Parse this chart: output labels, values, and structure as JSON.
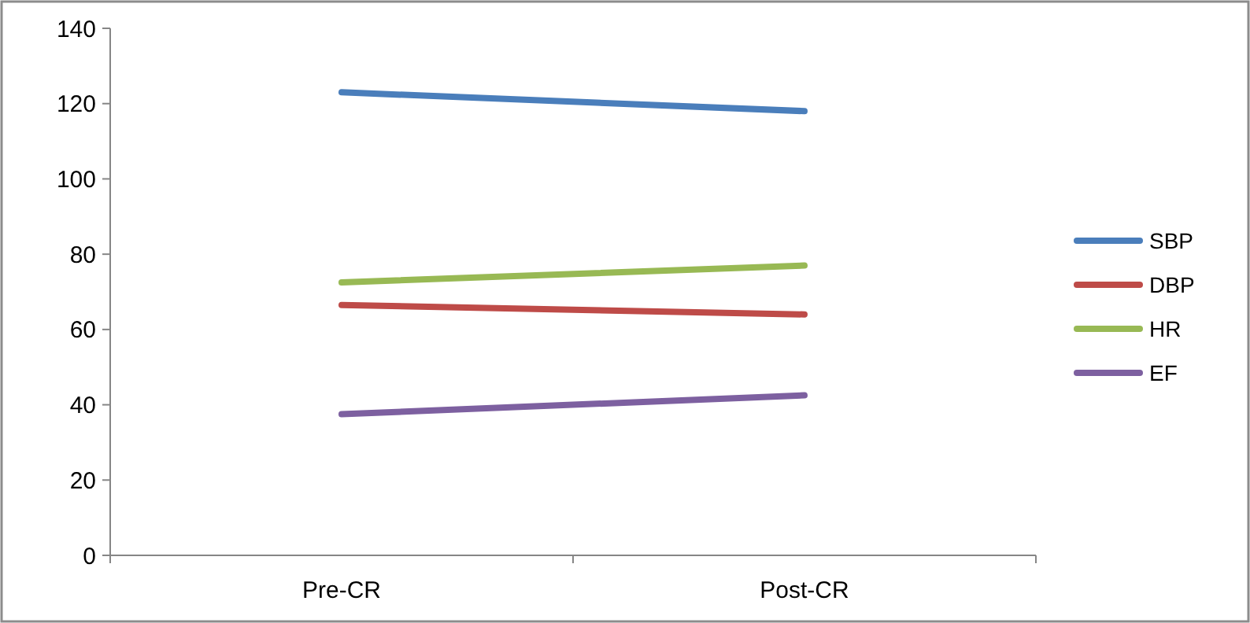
{
  "chart_data": {
    "type": "line",
    "categories": [
      "Pre-CR",
      "Post-CR"
    ],
    "series": [
      {
        "name": "SBP",
        "color": "#4a7ebb",
        "values": [
          123,
          118
        ]
      },
      {
        "name": "DBP",
        "color": "#be4b48",
        "values": [
          66.5,
          64
        ]
      },
      {
        "name": "HR",
        "color": "#98b954",
        "values": [
          72.5,
          77
        ]
      },
      {
        "name": "EF",
        "color": "#7d60a0",
        "values": [
          37.5,
          42.5
        ]
      }
    ],
    "ylim": [
      0,
      140
    ],
    "yticks": [
      0,
      20,
      40,
      60,
      80,
      100,
      120,
      140
    ],
    "grid": false,
    "legend": "right",
    "marker": "none",
    "line_style": "solid"
  }
}
